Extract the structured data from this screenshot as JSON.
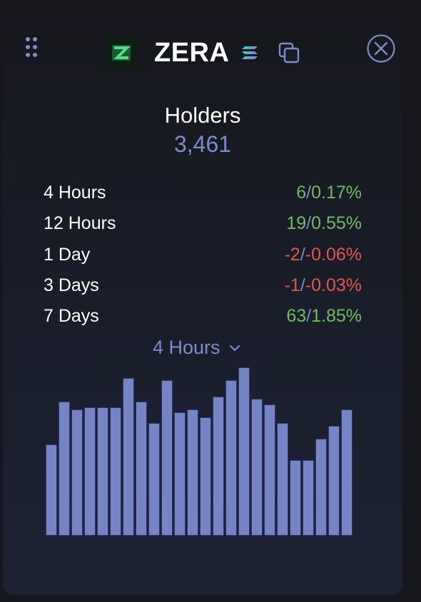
{
  "token": {
    "name": "ZERA",
    "chain_icon": "solana-icon",
    "logo_icon": "zera-logo-icon"
  },
  "holders": {
    "label": "Holders",
    "value": "3,461"
  },
  "stats": [
    {
      "label": "4 Hours",
      "count": "6",
      "percent": "0.17%",
      "trend": "up"
    },
    {
      "label": "12 Hours",
      "count": "19",
      "percent": "0.55%",
      "trend": "up"
    },
    {
      "label": "1 Day",
      "count": "-2",
      "percent": "-0.06%",
      "trend": "down"
    },
    {
      "label": "3 Days",
      "count": "-1",
      "percent": "-0.03%",
      "trend": "down"
    },
    {
      "label": "7 Days",
      "count": "63",
      "percent": "1.85%",
      "trend": "up"
    }
  ],
  "separator": "/",
  "range_select": {
    "value": "4 Hours"
  },
  "colors": {
    "positive": "#6dbd63",
    "negative": "#e2564f",
    "accent": "#7b8ccc",
    "bar": "#7584c3"
  },
  "chart_data": {
    "type": "bar",
    "values": [
      128,
      188,
      177,
      180,
      180,
      180,
      221,
      188,
      158,
      218,
      173,
      177,
      166,
      195,
      218,
      236,
      192,
      184,
      158,
      106,
      106,
      136,
      154,
      177
    ],
    "title": "",
    "xlabel": "",
    "ylabel": "",
    "grid": false
  }
}
